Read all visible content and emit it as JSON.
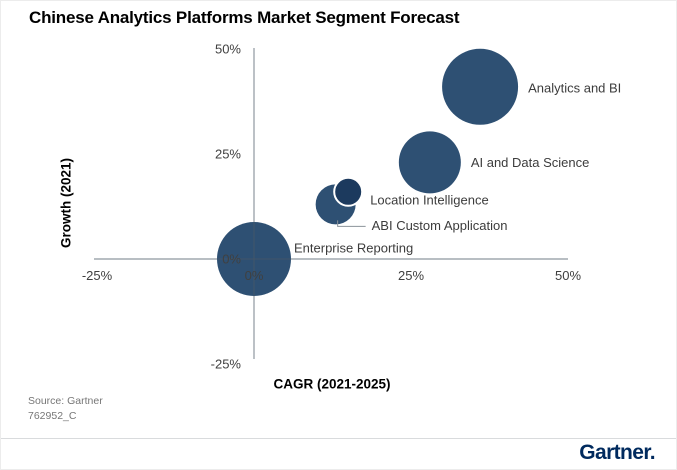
{
  "page": {
    "title": "Chinese Analytics Platforms Market Segment Forecast",
    "source_line1": "Source: Gartner",
    "source_line2": "762952_C",
    "logo_text": "Gartner."
  },
  "colors": {
    "bubble_fill": "#2E5073",
    "bubble_fill_dark": "#1C3A5E",
    "bubble_stroke_highlight": "#FFFFFF",
    "axis_line": "#5E6C79",
    "tick_text": "#404040",
    "label_text": "#3C3C3C",
    "leader_line": "#8B9299",
    "divider": "#D9DBDD",
    "source_text": "#767676",
    "logo_navy": "#002A5E"
  },
  "chart_data": {
    "type": "scatter",
    "subtype": "bubble",
    "title": "Chinese Analytics Platforms Market Segment Forecast",
    "xlabel": "CAGR (2021-2025)",
    "ylabel": "Growth (2021)",
    "xlim": [
      -25,
      50
    ],
    "ylim": [
      -25,
      50
    ],
    "grid": false,
    "legend": "none - direct labels next to bubbles",
    "x_ticks": [
      {
        "value": -25,
        "label": "-25%"
      },
      {
        "value": 0,
        "label": "0%"
      },
      {
        "value": 25,
        "label": "25%"
      },
      {
        "value": 50,
        "label": "50%"
      }
    ],
    "y_ticks": [
      {
        "value": 50,
        "label": "50%"
      },
      {
        "value": 25,
        "label": "25%"
      },
      {
        "value": 0,
        "label": "0%"
      },
      {
        "value": -25,
        "label": "-25%"
      }
    ],
    "series": [
      {
        "name": "Analytics and BI",
        "cagr_pct": 36,
        "growth_pct": 41,
        "bubble_radius_px": 38,
        "color": "#2E5073",
        "label_offset": [
          48,
          1
        ]
      },
      {
        "name": "AI and Data Science",
        "cagr_pct": 28,
        "growth_pct": 23,
        "bubble_radius_px": 31,
        "color": "#2E5073",
        "label_offset": [
          41,
          0
        ]
      },
      {
        "name": "Location Intelligence",
        "cagr_pct": 15,
        "growth_pct": 16,
        "bubble_radius_px": 14,
        "color": "#1C3A5E",
        "stroke": "#FFFFFF",
        "label_offset": [
          22,
          8
        ]
      },
      {
        "name": "ABI Custom Application",
        "cagr_pct": 13,
        "growth_pct": 13,
        "bubble_radius_px": 20,
        "color": "#2E5073",
        "label_offset": [
          36,
          21
        ],
        "leader_line": true
      },
      {
        "name": "Enterprise Reporting",
        "cagr_pct": 0,
        "growth_pct": 0,
        "bubble_radius_px": 37,
        "color": "#2E5073",
        "label_offset": [
          40,
          -11
        ]
      }
    ]
  }
}
